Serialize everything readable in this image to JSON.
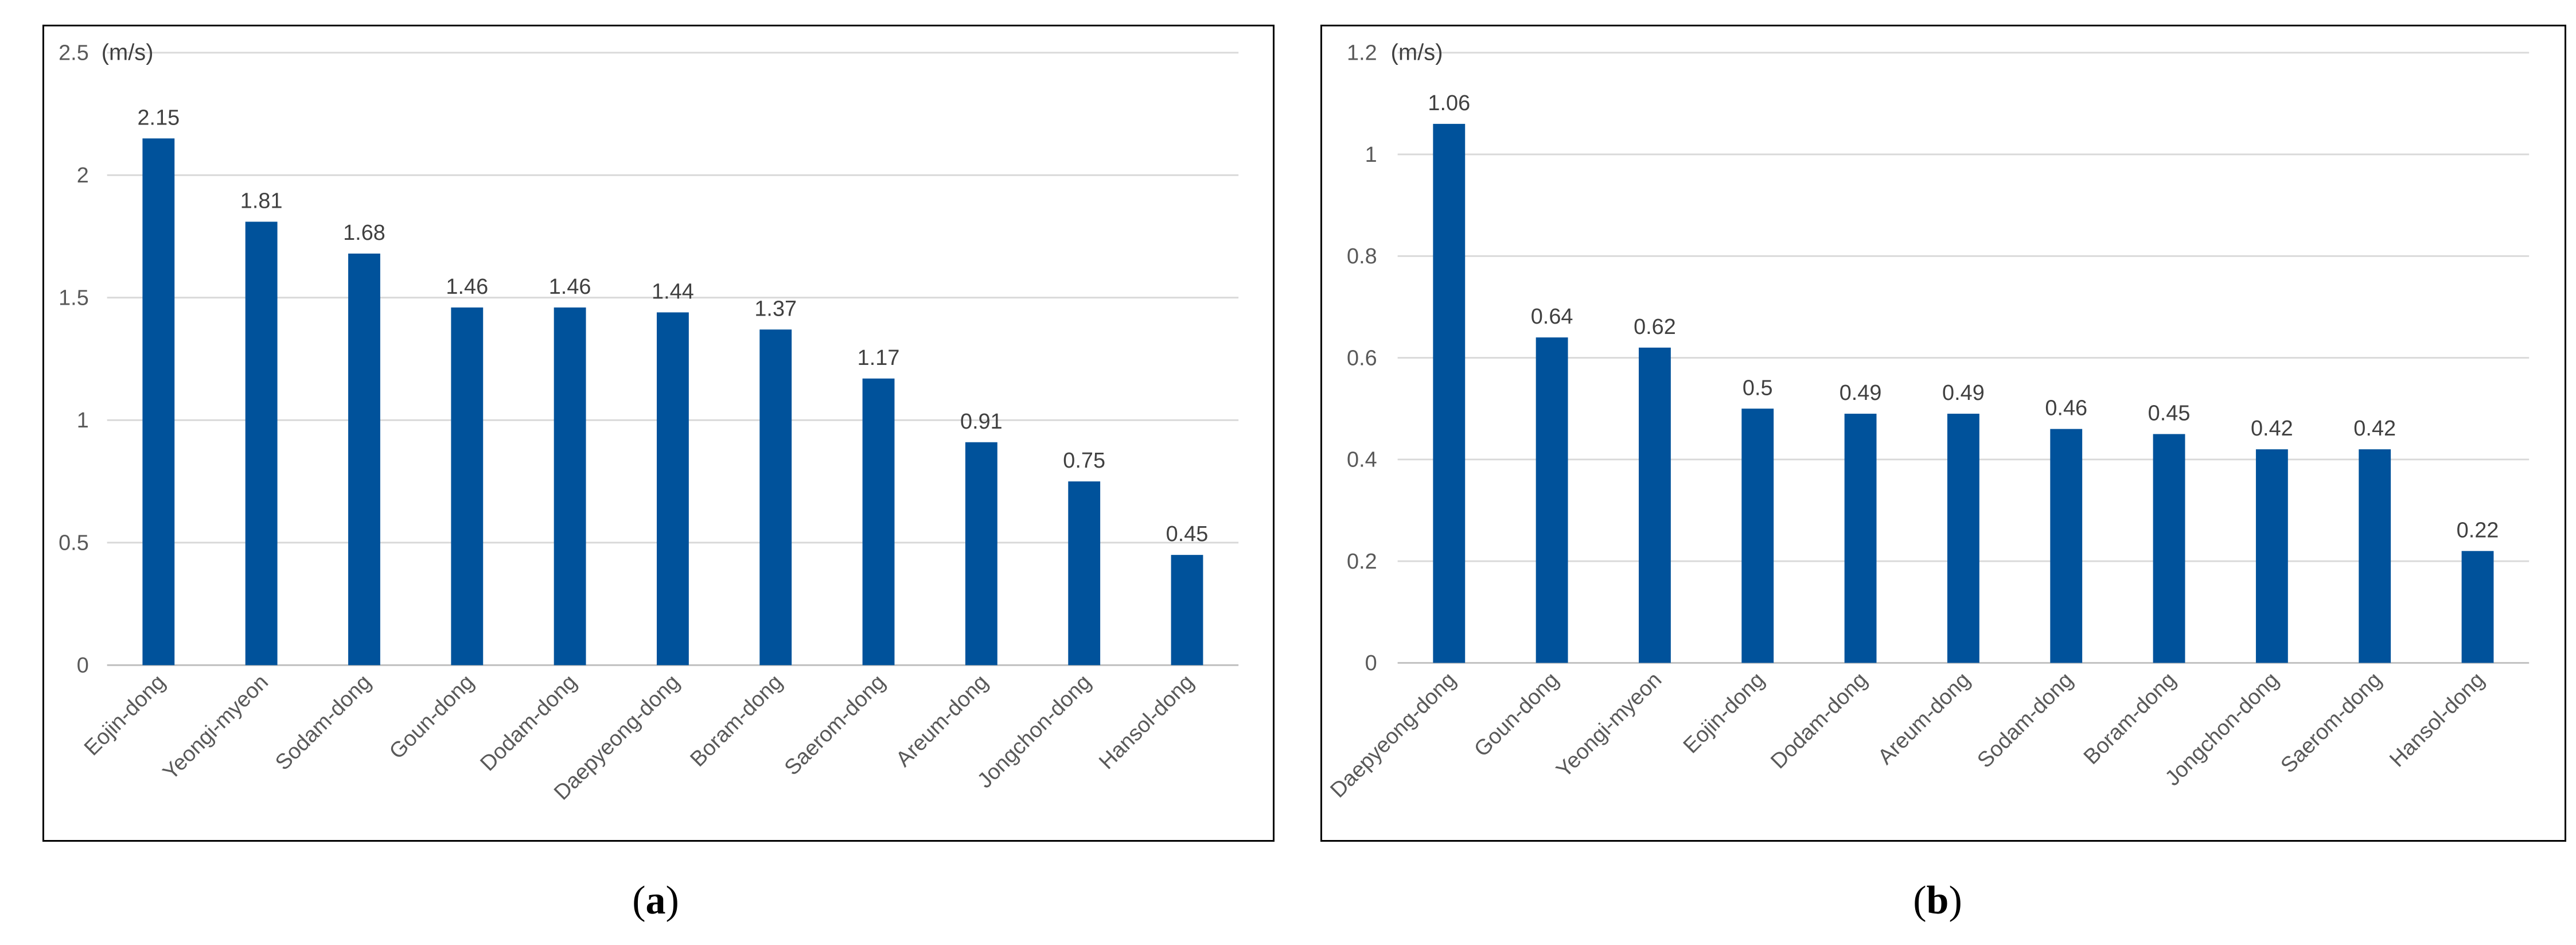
{
  "chart_data": [
    {
      "type": "bar",
      "id": "a",
      "unit_label": "(m/s)",
      "categories": [
        "Eojin-dong",
        "Yeongi-myeon",
        "Sodam-dong",
        "Goun-dong",
        "Dodam-dong",
        "Daepyeong-dong",
        "Boram-dong",
        "Saerom-dong",
        "Areum-dong",
        "Jongchon-dong",
        "Hansol-dong"
      ],
      "values": [
        2.15,
        1.81,
        1.68,
        1.46,
        1.46,
        1.44,
        1.37,
        1.17,
        0.91,
        0.75,
        0.45
      ],
      "data_labels": [
        "2.15",
        "1.81",
        "1.68",
        "1.46",
        "1.46",
        "1.44",
        "1.37",
        "1.17",
        "0.91",
        "0.75",
        "0.45"
      ],
      "yticks": [
        0,
        0.5,
        1,
        1.5,
        2,
        2.5
      ],
      "ytick_labels": [
        "0",
        "0.5",
        "1",
        "1.5",
        "2",
        "2.5"
      ],
      "ylim": [
        0,
        2.5
      ],
      "grid": true,
      "bar_color": "#00529B",
      "caption_open": "(",
      "caption_letter": "a",
      "caption_close": ")"
    },
    {
      "type": "bar",
      "id": "b",
      "unit_label": "(m/s)",
      "categories": [
        "Daepyeong-dong",
        "Goun-dong",
        "Yeongi-myeon",
        "Eojin-dong",
        "Dodam-dong",
        "Areum-dong",
        "Sodam-dong",
        "Boram-dong",
        "Jongchon-dong",
        "Saerom-dong",
        "Hansol-dong"
      ],
      "values": [
        1.06,
        0.64,
        0.62,
        0.5,
        0.49,
        0.49,
        0.46,
        0.45,
        0.42,
        0.42,
        0.22
      ],
      "data_labels": [
        "1.06",
        "0.64",
        "0.62",
        "0.5",
        "0.49",
        "0.49",
        "0.46",
        "0.45",
        "0.42",
        "0.42",
        "0.22"
      ],
      "yticks": [
        0,
        0.2,
        0.4,
        0.6,
        0.8,
        1,
        1.2
      ],
      "ytick_labels": [
        "0",
        "0.2",
        "0.4",
        "0.6",
        "0.8",
        "1",
        "1.2"
      ],
      "ylim": [
        0,
        1.2
      ],
      "grid": true,
      "bar_color": "#00529B",
      "caption_open": "(",
      "caption_letter": "b",
      "caption_close": ")"
    }
  ]
}
